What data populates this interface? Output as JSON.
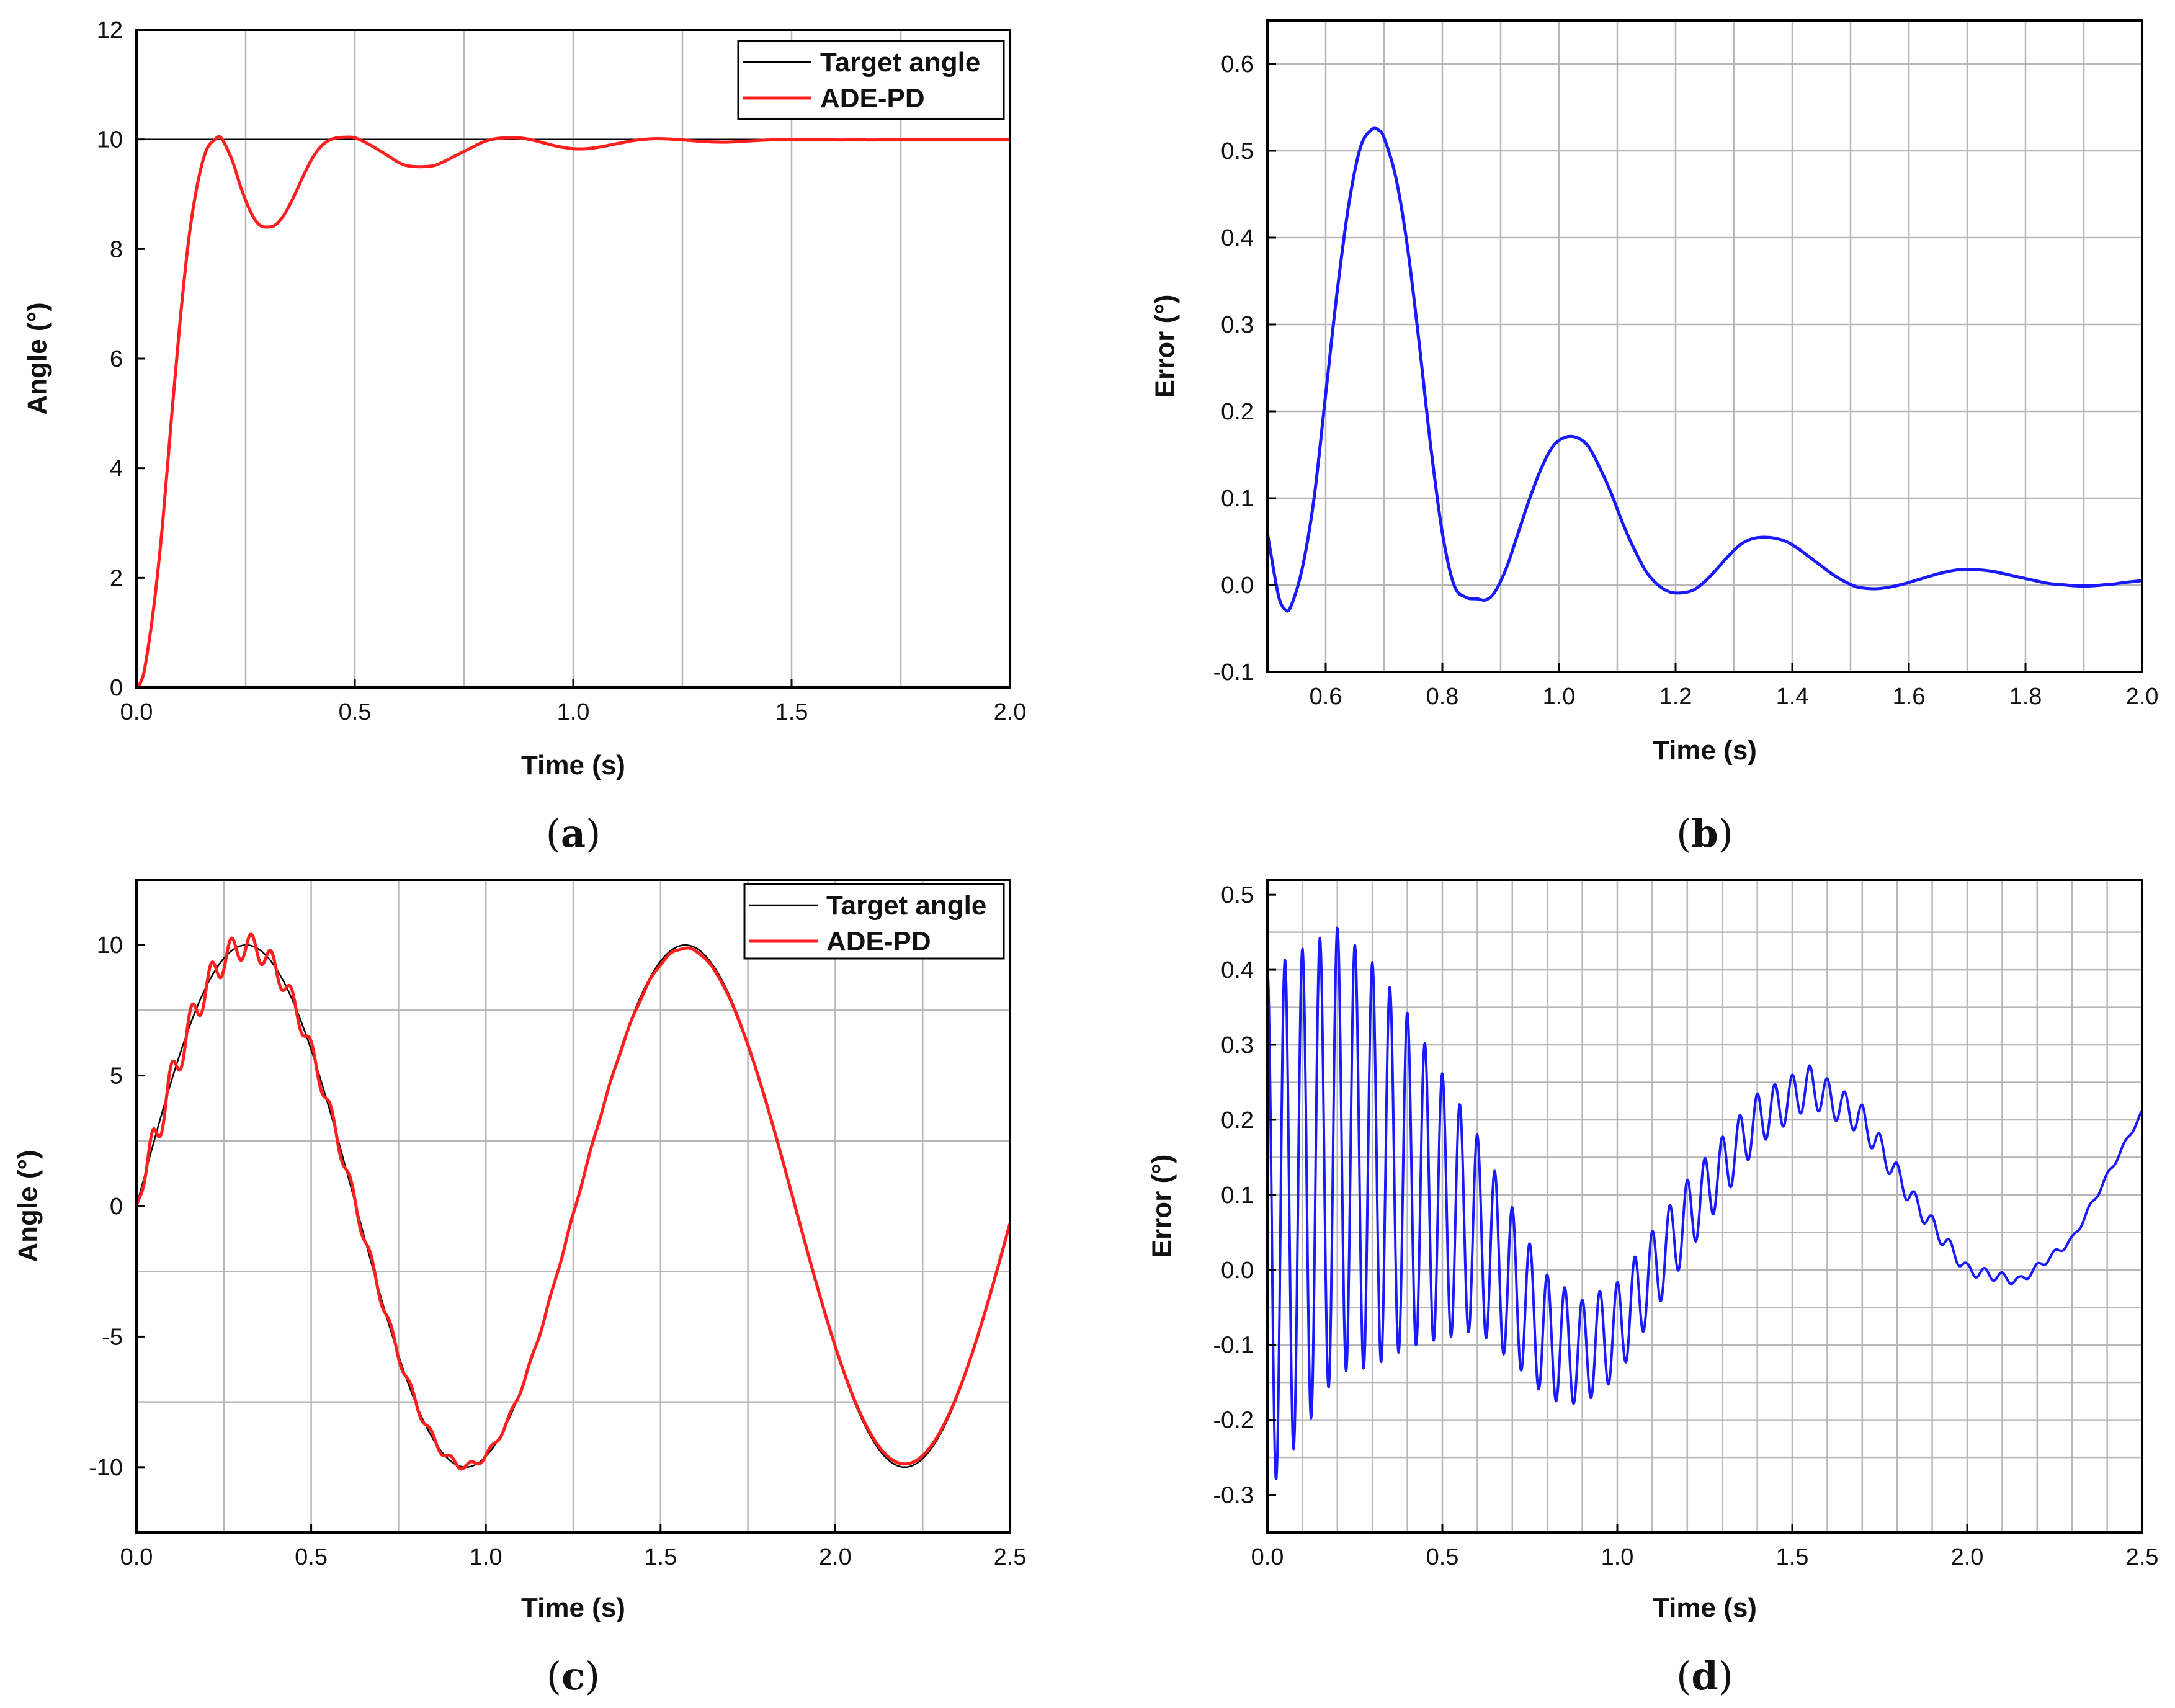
{
  "chart_data": [
    {
      "id": "a",
      "type": "line",
      "caption": "a",
      "xlabel": "Time (s)",
      "ylabel": "Angle (°)",
      "xlim": [
        0,
        2
      ],
      "ylim": [
        0,
        12
      ],
      "xticks": [
        0,
        0.5,
        1,
        1.5,
        2
      ],
      "xtick_labels": [
        "0.0",
        "0.5",
        "1.0",
        "1.5",
        "2.0"
      ],
      "yticks": [
        0,
        2,
        4,
        6,
        8,
        10,
        12
      ],
      "ytick_labels": [
        "0",
        "2",
        "4",
        "6",
        "8",
        "10",
        "12"
      ],
      "grid_x": [
        0.25,
        0.5,
        0.75,
        1,
        1.25,
        1.5,
        1.75
      ],
      "grid_y": [],
      "legend": "top-right",
      "series": [
        {
          "name": "Target angle",
          "color": "#000000",
          "width": 2.5,
          "x": [
            0,
            2
          ],
          "y": [
            10,
            10
          ]
        },
        {
          "name": "ADE-PD",
          "color": "#ff1f1f",
          "width": 5,
          "x": [
            0,
            0.01,
            0.02,
            0.04,
            0.06,
            0.08,
            0.1,
            0.12,
            0.14,
            0.16,
            0.18,
            0.19,
            0.2,
            0.22,
            0.24,
            0.26,
            0.28,
            0.3,
            0.32,
            0.34,
            0.36,
            0.38,
            0.4,
            0.42,
            0.44,
            0.46,
            0.48,
            0.5,
            0.53,
            0.56,
            0.58,
            0.6,
            0.62,
            0.65,
            0.68,
            0.7,
            0.72,
            0.75,
            0.78,
            0.8,
            0.83,
            0.87,
            0.9,
            0.93,
            0.96,
            1.0,
            1.03,
            1.06,
            1.1,
            1.14,
            1.18,
            1.21,
            1.25,
            1.3,
            1.35,
            1.4,
            1.45,
            1.5,
            1.55,
            1.6,
            1.65,
            1.7,
            1.75,
            1.8,
            1.85,
            1.9,
            1.95,
            2.0
          ],
          "y": [
            0,
            0.1,
            0.4,
            1.5,
            3.0,
            4.9,
            6.7,
            8.2,
            9.2,
            9.8,
            10.0,
            10.05,
            9.95,
            9.6,
            9.1,
            8.7,
            8.45,
            8.4,
            8.45,
            8.65,
            8.95,
            9.3,
            9.62,
            9.85,
            9.98,
            10.03,
            10.04,
            10.03,
            9.92,
            9.78,
            9.68,
            9.58,
            9.52,
            9.5,
            9.52,
            9.58,
            9.66,
            9.78,
            9.9,
            9.97,
            10.02,
            10.03,
            10.0,
            9.94,
            9.88,
            9.83,
            9.83,
            9.86,
            9.92,
            9.98,
            10.01,
            10.01,
            9.99,
            9.96,
            9.95,
            9.97,
            9.99,
            10.0,
            10.0,
            9.99,
            9.99,
            9.99,
            10.0,
            10.0,
            10.0,
            10.0,
            10.0,
            10.0
          ]
        }
      ]
    },
    {
      "id": "b",
      "type": "line",
      "caption": "b",
      "xlabel": "Time (s)",
      "ylabel": "Error (°)",
      "xlim": [
        0.5,
        2
      ],
      "ylim": [
        -0.1,
        0.65
      ],
      "xticks": [
        0.6,
        0.8,
        1.0,
        1.2,
        1.4,
        1.6,
        1.8,
        2.0
      ],
      "xtick_labels": [
        "0.6",
        "0.8",
        "1.0",
        "1.2",
        "1.4",
        "1.6",
        "1.8",
        "2.0"
      ],
      "yticks": [
        -0.1,
        0,
        0.1,
        0.2,
        0.3,
        0.4,
        0.5,
        0.6
      ],
      "ytick_labels": [
        "-0.1",
        "0.0",
        "0.1",
        "0.2",
        "0.3",
        "0.4",
        "0.5",
        "0.6"
      ],
      "grid_x": [
        0.6,
        0.7,
        0.8,
        0.9,
        1.0,
        1.1,
        1.2,
        1.3,
        1.4,
        1.5,
        1.6,
        1.7,
        1.8,
        1.9
      ],
      "grid_y": [
        0,
        0.1,
        0.2,
        0.3,
        0.4,
        0.5,
        0.6
      ],
      "legend": "none",
      "series": [
        {
          "name": "Error",
          "color": "#1a1aff",
          "width": 5,
          "x": [
            0.5,
            0.51,
            0.52,
            0.53,
            0.54,
            0.56,
            0.58,
            0.6,
            0.62,
            0.64,
            0.66,
            0.68,
            0.69,
            0.7,
            0.72,
            0.74,
            0.76,
            0.78,
            0.8,
            0.82,
            0.84,
            0.86,
            0.875,
            0.89,
            0.91,
            0.93,
            0.95,
            0.97,
            0.99,
            1.01,
            1.03,
            1.05,
            1.07,
            1.09,
            1.11,
            1.13,
            1.15,
            1.17,
            1.19,
            1.21,
            1.23,
            1.25,
            1.27,
            1.29,
            1.31,
            1.33,
            1.35,
            1.37,
            1.39,
            1.41,
            1.43,
            1.45,
            1.47,
            1.49,
            1.51,
            1.53,
            1.55,
            1.57,
            1.59,
            1.61,
            1.63,
            1.65,
            1.67,
            1.69,
            1.71,
            1.73,
            1.75,
            1.77,
            1.79,
            1.81,
            1.83,
            1.85,
            1.87,
            1.89,
            1.91,
            1.93,
            1.95,
            1.97,
            2.0
          ],
          "y": [
            0.06,
            0.02,
            -0.015,
            -0.028,
            -0.025,
            0.02,
            0.1,
            0.22,
            0.34,
            0.44,
            0.505,
            0.525,
            0.524,
            0.515,
            0.47,
            0.39,
            0.28,
            0.16,
            0.06,
            0.0,
            -0.014,
            -0.016,
            -0.017,
            -0.008,
            0.02,
            0.06,
            0.1,
            0.135,
            0.16,
            0.17,
            0.17,
            0.16,
            0.135,
            0.105,
            0.07,
            0.04,
            0.015,
            0.0,
            -0.008,
            -0.009,
            -0.006,
            0.004,
            0.018,
            0.033,
            0.046,
            0.053,
            0.055,
            0.054,
            0.05,
            0.042,
            0.032,
            0.022,
            0.012,
            0.004,
            -0.002,
            -0.004,
            -0.004,
            -0.002,
            0.001,
            0.005,
            0.009,
            0.013,
            0.016,
            0.018,
            0.018,
            0.017,
            0.015,
            0.012,
            0.009,
            0.006,
            0.003,
            0.001,
            0.0,
            -0.001,
            -0.001,
            0.0,
            0.001,
            0.003,
            0.005
          ]
        }
      ]
    },
    {
      "id": "c",
      "type": "line",
      "caption": "c",
      "xlabel": "Time (s)",
      "ylabel": "Angle (°)",
      "xlim": [
        0,
        2.5
      ],
      "ylim": [
        -12.5,
        12.5
      ],
      "xticks": [
        0,
        0.5,
        1,
        1.5,
        2,
        2.5
      ],
      "xtick_labels": [
        "0.0",
        "0.5",
        "1.0",
        "1.5",
        "2.0",
        "2.5"
      ],
      "yticks": [
        -10,
        -5,
        0,
        5,
        10
      ],
      "ytick_labels": [
        "-10",
        "-5",
        "0",
        "5",
        "10"
      ],
      "grid_x": [
        0.25,
        0.5,
        0.75,
        1,
        1.25,
        1.5,
        1.75,
        2,
        2.25
      ],
      "grid_y": [
        -7.5,
        -2.5,
        2.5,
        7.5
      ],
      "legend": "top-right",
      "target_function": {
        "amplitude": 10,
        "omega": 5
      },
      "oscillation": {
        "frequency_hz": 17.5,
        "envelope": [
          [
            0,
            0.75
          ],
          [
            0.25,
            0.55
          ],
          [
            0.5,
            0.35
          ],
          [
            0.75,
            0.2
          ],
          [
            1.0,
            0.12
          ],
          [
            1.25,
            0.05
          ],
          [
            1.5,
            0.03
          ],
          [
            1.75,
            0.0
          ],
          [
            2.5,
            0.0
          ]
        ]
      },
      "tracking_lag": 0.12,
      "series": [
        {
          "name": "Target angle",
          "color": "#000000",
          "width": 2.5
        },
        {
          "name": "ADE-PD",
          "color": "#ff1f1f",
          "width": 5
        }
      ]
    },
    {
      "id": "d",
      "type": "line",
      "caption": "d",
      "xlabel": "Time (s)",
      "ylabel": "Error (°)",
      "xlim": [
        0,
        2.5
      ],
      "ylim": [
        -0.35,
        0.52
      ],
      "xticks": [
        0,
        0.5,
        1,
        1.5,
        2,
        2.5
      ],
      "xtick_labels": [
        "0.0",
        "0.5",
        "1.0",
        "1.5",
        "2.0",
        "2.5"
      ],
      "yticks": [
        -0.3,
        -0.2,
        -0.1,
        0,
        0.1,
        0.2,
        0.3,
        0.4,
        0.5
      ],
      "ytick_labels": [
        "-0.3",
        "-0.2",
        "-0.1",
        "0.0",
        "0.1",
        "0.2",
        "0.3",
        "0.4",
        "0.5"
      ],
      "grid_x": [
        0.1,
        0.2,
        0.3,
        0.4,
        0.5,
        0.6,
        0.7,
        0.8,
        0.9,
        1.0,
        1.1,
        1.2,
        1.3,
        1.4,
        1.5,
        1.6,
        1.7,
        1.8,
        1.9,
        2.0,
        2.1,
        2.2,
        2.3,
        2.4
      ],
      "grid_y": [
        -0.25,
        -0.2,
        -0.15,
        -0.1,
        -0.05,
        0,
        0.05,
        0.1,
        0.15,
        0.2,
        0.25,
        0.3,
        0.35,
        0.4,
        0.45
      ],
      "legend": "none",
      "error_model": {
        "oscillation_hz": 20,
        "baseline": [
          [
            0,
            0.05
          ],
          [
            0.2,
            0.16
          ],
          [
            0.4,
            0.12
          ],
          [
            0.6,
            0.05
          ],
          [
            0.8,
            -0.09
          ],
          [
            0.9,
            -0.11
          ],
          [
            1.0,
            -0.08
          ],
          [
            1.2,
            0.07
          ],
          [
            1.4,
            0.2
          ],
          [
            1.55,
            0.245
          ],
          [
            1.7,
            0.2
          ],
          [
            1.85,
            0.09
          ],
          [
            2.0,
            0.0
          ],
          [
            2.15,
            -0.015
          ],
          [
            2.3,
            0.04
          ],
          [
            2.5,
            0.21
          ]
        ],
        "amplitude": [
          [
            0,
            0.35
          ],
          [
            0.15,
            0.31
          ],
          [
            0.3,
            0.27
          ],
          [
            0.45,
            0.2
          ],
          [
            0.6,
            0.13
          ],
          [
            0.75,
            0.09
          ],
          [
            0.9,
            0.07
          ],
          [
            1.05,
            0.06
          ],
          [
            1.2,
            0.05
          ],
          [
            1.4,
            0.035
          ],
          [
            1.6,
            0.025
          ],
          [
            1.8,
            0.015
          ],
          [
            2.0,
            0.008
          ],
          [
            2.2,
            0.005
          ],
          [
            2.5,
            0.003
          ]
        ]
      },
      "series": [
        {
          "name": "Error",
          "color": "#1a1aff",
          "width": 4
        }
      ]
    }
  ]
}
